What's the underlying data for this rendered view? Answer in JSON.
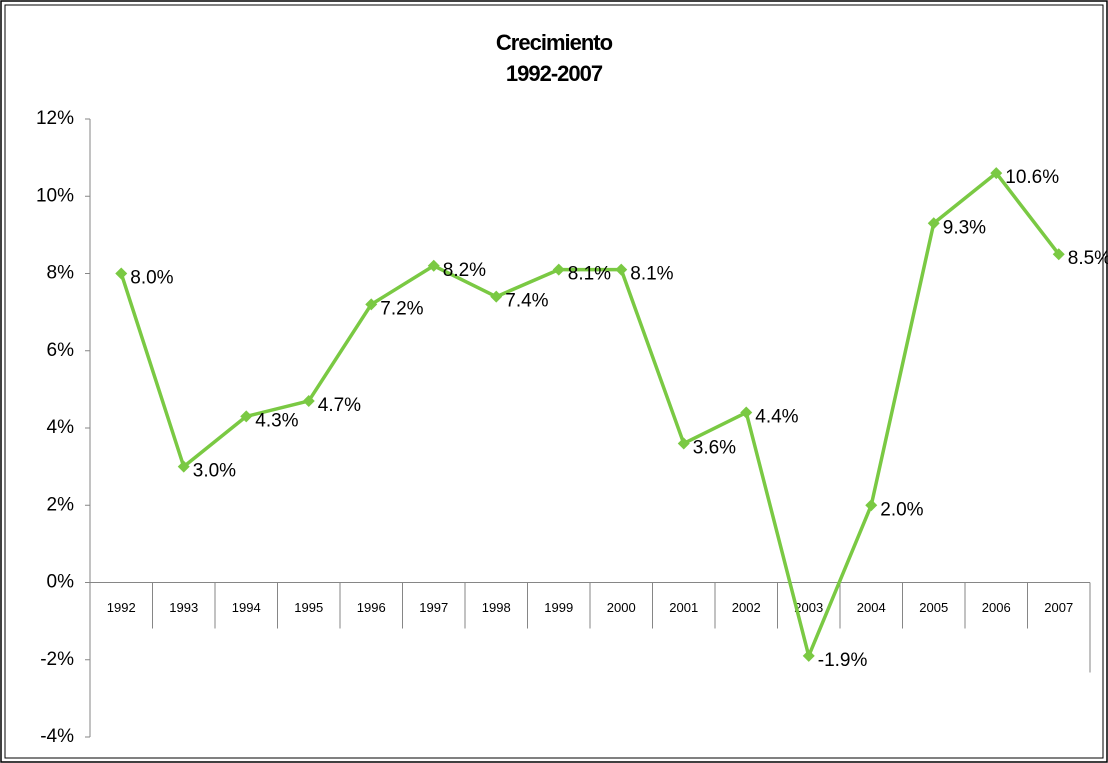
{
  "chart_data": {
    "type": "line",
    "title": "Crecimiento",
    "subtitle": "1992-2007",
    "categories": [
      "1992",
      "1993",
      "1994",
      "1995",
      "1996",
      "1997",
      "1998",
      "1999",
      "2000",
      "2001",
      "2002",
      "2003",
      "2004",
      "2005",
      "2006",
      "2007"
    ],
    "series": [
      {
        "name": "Crecimiento",
        "color": "#7ac943",
        "values": [
          8.0,
          3.0,
          4.3,
          4.7,
          7.2,
          8.2,
          7.4,
          8.1,
          8.1,
          3.6,
          4.4,
          -1.9,
          2.0,
          9.3,
          10.6,
          8.5
        ],
        "value_labels": [
          "8.0%",
          "3.0%",
          "4.3%",
          "4.7%",
          "7.2%",
          "8.2%",
          "7.4%",
          "8.1%",
          "8.1%",
          "3.6%",
          "4.4%",
          "-1.9%",
          "2.0%",
          "9.3%",
          "10.6%",
          "8.5%"
        ]
      }
    ],
    "ylim": [
      -4,
      12
    ],
    "yticks": [
      {
        "value": -4,
        "label": "-4%"
      },
      {
        "value": -2,
        "label": "-2%"
      },
      {
        "value": 0,
        "label": "0%"
      },
      {
        "value": 2,
        "label": "2%"
      },
      {
        "value": 4,
        "label": "4%"
      },
      {
        "value": 6,
        "label": "6%"
      },
      {
        "value": 8,
        "label": "8%"
      },
      {
        "value": 10,
        "label": "10%"
      },
      {
        "value": 12,
        "label": "12%"
      }
    ]
  }
}
